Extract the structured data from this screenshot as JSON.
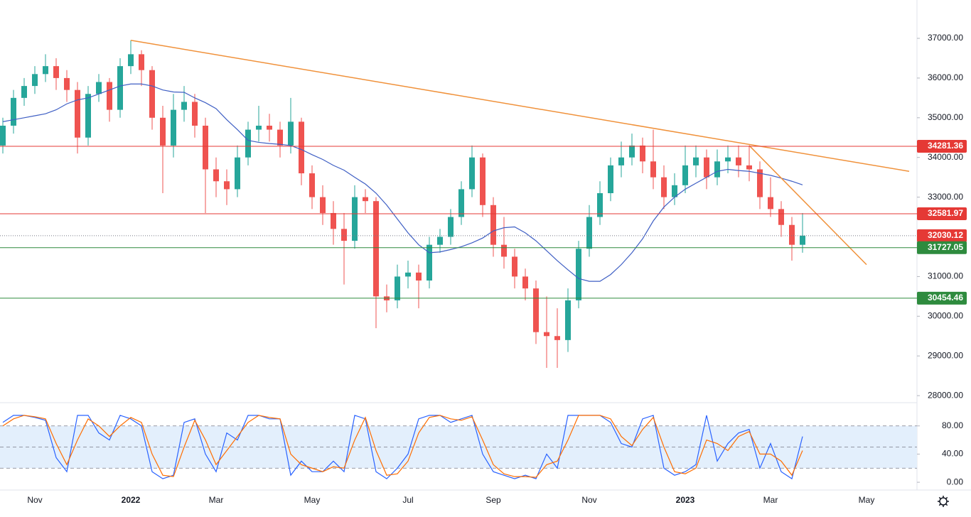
{
  "chart_data": [
    {
      "type": "candlestick",
      "categories": [
        null,
        null,
        null,
        "Nov",
        null,
        null,
        null,
        null,
        null,
        null,
        null,
        null,
        "2022",
        null,
        null,
        null,
        null,
        null,
        null,
        null,
        "Mar",
        null,
        null,
        null,
        null,
        null,
        null,
        null,
        null,
        "May",
        null,
        null,
        null,
        null,
        null,
        null,
        null,
        null,
        "Jul",
        null,
        null,
        null,
        null,
        null,
        null,
        null,
        "Sep",
        null,
        null,
        null,
        null,
        null,
        null,
        null,
        null,
        "Nov",
        null,
        null,
        null,
        null,
        null,
        null,
        null,
        null,
        "2023",
        null,
        null,
        null,
        null,
        null,
        null,
        null,
        "Mar",
        null,
        null,
        null,
        null,
        null,
        null,
        null,
        null,
        "May",
        null,
        null,
        null,
        null
      ],
      "open": [
        34300,
        34800,
        35500,
        35800,
        36100,
        36300,
        36000,
        35700,
        34500,
        35600,
        35900,
        35200,
        36300,
        36600,
        36200,
        35000,
        34300,
        35200,
        35400,
        34800,
        33700,
        33400,
        33200,
        34000,
        34700,
        34800,
        34700,
        34300,
        34900,
        33600,
        33000,
        32600,
        32200,
        31900,
        33000,
        32900,
        30500,
        30400,
        31000,
        31100,
        30900,
        31800,
        32000,
        32500,
        33200,
        34000,
        32800,
        31800,
        31500,
        31000,
        30700,
        29600,
        29500,
        29400,
        30400,
        31700,
        32500,
        33100,
        33800,
        34000,
        34300,
        33900,
        33500,
        33000,
        33300,
        33800,
        34000,
        33500,
        33900,
        34000,
        33800,
        33700,
        33000,
        32700,
        32300,
        31800,
        null,
        null,
        null,
        null,
        null,
        null,
        null,
        null,
        null,
        null
      ],
      "high": [
        35000,
        35700,
        36000,
        36300,
        36600,
        36500,
        36200,
        35900,
        35800,
        36100,
        36000,
        36500,
        36950,
        36700,
        36300,
        35300,
        35600,
        35800,
        35600,
        35000,
        34000,
        33700,
        34300,
        34900,
        35300,
        35100,
        34900,
        35500,
        35000,
        33800,
        33300,
        32900,
        32600,
        33300,
        33200,
        33000,
        30800,
        31300,
        31400,
        31300,
        32000,
        32200,
        32700,
        33400,
        34300,
        34100,
        33000,
        32500,
        31700,
        31200,
        30900,
        30500,
        30200,
        30700,
        31900,
        32800,
        33400,
        34000,
        34400,
        34600,
        34500,
        34700,
        33800,
        33600,
        34300,
        34300,
        34200,
        34200,
        34300,
        34300,
        34300,
        33900,
        33500,
        32900,
        32500,
        32600,
        null,
        null,
        null,
        null,
        null,
        null,
        null,
        null,
        null,
        null
      ],
      "low": [
        34100,
        34600,
        35300,
        35600,
        35900,
        35700,
        35400,
        34100,
        34300,
        35400,
        34900,
        35000,
        36100,
        35800,
        34700,
        33100,
        34000,
        34900,
        34500,
        32600,
        33000,
        32800,
        33000,
        33800,
        34400,
        34400,
        34000,
        34100,
        33300,
        32700,
        32300,
        31800,
        30800,
        31700,
        32600,
        29700,
        30100,
        30200,
        30700,
        30200,
        30700,
        31600,
        31800,
        32300,
        33000,
        32500,
        31500,
        31200,
        30700,
        30400,
        29300,
        28700,
        28700,
        29100,
        30200,
        31500,
        32300,
        32900,
        33500,
        33800,
        33600,
        33200,
        32700,
        32800,
        33100,
        33500,
        33200,
        33300,
        33600,
        33500,
        33400,
        32700,
        32500,
        32000,
        31400,
        31600,
        null,
        null,
        null,
        null,
        null,
        null,
        null,
        null,
        null,
        null
      ],
      "close": [
        34800,
        35500,
        35800,
        36100,
        36300,
        36000,
        35700,
        34500,
        35600,
        35900,
        35200,
        36300,
        36600,
        36200,
        35000,
        34300,
        35200,
        35400,
        34800,
        33700,
        33400,
        33200,
        34000,
        34700,
        34800,
        34700,
        34300,
        34900,
        33600,
        33000,
        32600,
        32200,
        31900,
        33000,
        32900,
        30500,
        30400,
        31000,
        31100,
        30900,
        31800,
        32000,
        32500,
        33200,
        34000,
        32800,
        31800,
        31500,
        31000,
        30700,
        29600,
        29500,
        29400,
        30400,
        31700,
        32500,
        33100,
        33800,
        34000,
        34300,
        33900,
        33500,
        33000,
        33300,
        33800,
        34000,
        33500,
        33900,
        34000,
        33800,
        33700,
        33000,
        32700,
        32300,
        31800,
        32030.12,
        null,
        null,
        null,
        null,
        null,
        null,
        null,
        null,
        null,
        null
      ],
      "ma": [
        34900,
        34950,
        35000,
        35050,
        35100,
        35200,
        35350,
        35450,
        35500,
        35600,
        35700,
        35800,
        35850,
        35850,
        35800,
        35700,
        35650,
        35640,
        35500,
        35380,
        35230,
        34950,
        34700,
        34430,
        34380,
        34350,
        34330,
        34300,
        34200,
        34070,
        33950,
        33800,
        33680,
        33500,
        33330,
        33100,
        32800,
        32450,
        32100,
        31800,
        31600,
        31620,
        31680,
        31750,
        31850,
        31970,
        32150,
        32230,
        32250,
        32100,
        31900,
        31650,
        31400,
        31170,
        30950,
        30880,
        30880,
        31050,
        31300,
        31600,
        31950,
        32400,
        32750,
        33000,
        33200,
        33350,
        33500,
        33650,
        33700,
        33670,
        33650,
        33600,
        33550,
        33480,
        33400,
        33310,
        null,
        null,
        null,
        null,
        null,
        null,
        null,
        null,
        null,
        null
      ],
      "up_color": "#26a69a",
      "down_color": "#ef5350",
      "ma_color": "#3f5fc4",
      "ylim": [
        27823,
        37966
      ],
      "yticks": [
        {
          "value": 28000,
          "label": "28000.00"
        },
        {
          "value": 29000,
          "label": "29000.00"
        },
        {
          "value": 30000,
          "label": "30000.00"
        },
        {
          "value": 31000,
          "label": "31000.00"
        },
        {
          "value": 32000,
          "label": "32000.00"
        },
        {
          "value": 33000,
          "label": "33000.00"
        },
        {
          "value": 34000,
          "label": "34000.00"
        },
        {
          "value": 35000,
          "label": "35000.00"
        },
        {
          "value": 36000,
          "label": "36000.00"
        },
        {
          "value": 37000,
          "label": "37000.00"
        }
      ],
      "levels": [
        {
          "value": 34281.36,
          "color": "#e53935",
          "style": "solid"
        },
        {
          "value": 32581.97,
          "color": "#e53935",
          "style": "solid"
        },
        {
          "value": 32030.12,
          "color": "#e53935",
          "style": "dotted"
        },
        {
          "value": 31727.05,
          "color": "#2e8b3e",
          "style": "solid"
        },
        {
          "value": 30454.46,
          "color": "#2e8b3e",
          "style": "solid"
        }
      ],
      "trendlines": [
        {
          "from": [
            12,
            36950
          ],
          "to": [
            85,
            33650
          ],
          "color": "#f0913a"
        },
        {
          "from": [
            70,
            34300
          ],
          "to": [
            81,
            31300
          ],
          "color": "#f0913a"
        }
      ]
    },
    {
      "type": "line",
      "series": [
        {
          "color": "#2962ff",
          "values": [
            85,
            95,
            95,
            92,
            88,
            35,
            15,
            95,
            95,
            70,
            60,
            95,
            90,
            80,
            15,
            5,
            10,
            85,
            90,
            40,
            15,
            70,
            60,
            95,
            95,
            90,
            90,
            10,
            30,
            15,
            15,
            30,
            15,
            95,
            90,
            15,
            5,
            20,
            40,
            90,
            95,
            95,
            85,
            90,
            95,
            40,
            15,
            10,
            5,
            10,
            5,
            40,
            20,
            95,
            95,
            95,
            95,
            85,
            55,
            50,
            90,
            95,
            20,
            10,
            15,
            25,
            95,
            30,
            55,
            70,
            75,
            20,
            55,
            15,
            5,
            65,
            null,
            null,
            null,
            null,
            null,
            null,
            null,
            null,
            null,
            null
          ]
        },
        {
          "color": "#ff6d00",
          "values": [
            80,
            90,
            95,
            93,
            90,
            55,
            25,
            60,
            90,
            80,
            65,
            80,
            92,
            85,
            40,
            10,
            8,
            50,
            88,
            60,
            25,
            45,
            65,
            85,
            95,
            92,
            90,
            40,
            25,
            20,
            15,
            22,
            20,
            60,
            92,
            45,
            10,
            12,
            30,
            70,
            92,
            95,
            90,
            88,
            93,
            60,
            25,
            12,
            8,
            8,
            7,
            25,
            30,
            60,
            95,
            95,
            95,
            90,
            65,
            52,
            75,
            92,
            50,
            15,
            12,
            20,
            60,
            55,
            45,
            65,
            72,
            40,
            40,
            30,
            10,
            45,
            null,
            null,
            null,
            null,
            null,
            null,
            null,
            null,
            null,
            null
          ]
        }
      ],
      "ylim": [
        -11,
        113
      ],
      "yticks": [
        {
          "value": 0,
          "label": "0.00"
        },
        {
          "value": 40,
          "label": "40.00"
        },
        {
          "value": 80,
          "label": "80.00"
        }
      ],
      "band": [
        20,
        80
      ],
      "band_color": "#e3effc",
      "guides": [
        20,
        50,
        80
      ]
    }
  ]
}
